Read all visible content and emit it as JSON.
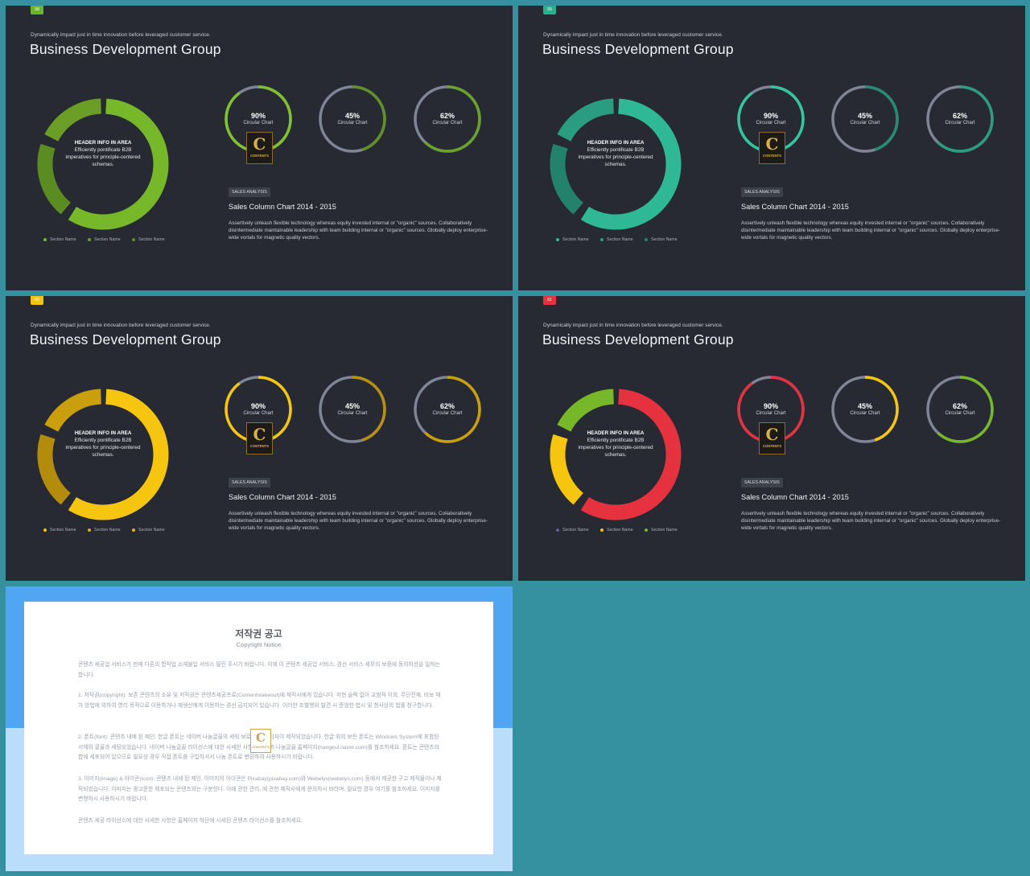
{
  "slides": [
    {
      "tag": "58",
      "tag_color": "#6ab42d",
      "subtitle": "Dynamically impact just in time innovation  before leveraged customer service.",
      "title": "Business Development Group",
      "donut": {
        "heading": "HEADER INFO IN AREA",
        "text": "Efficiently pontificate B2B imperatives for principle-centered schemas.",
        "segments": [
          {
            "color": "#76b82a"
          },
          {
            "color": "#5b8c22"
          },
          {
            "color": "#6a9e27"
          }
        ]
      },
      "legend": [
        {
          "label": "Section Name",
          "color": "#76b82a"
        },
        {
          "label": "Section Name",
          "color": "#6a9e27"
        },
        {
          "label": "Section Name",
          "color": "#5b8c22"
        }
      ],
      "rings": [
        {
          "pct": "90%",
          "label": "Circular Chart",
          "value": 0.9,
          "color": "#7fc22e"
        },
        {
          "pct": "45%",
          "label": "Circular Chart",
          "value": 0.45,
          "color": "#5f9226"
        },
        {
          "pct": "62%",
          "label": "Circular Chart",
          "value": 0.62,
          "color": "#6aa22a"
        }
      ],
      "logo_letter": "C",
      "logo_text": "CONTENTS",
      "badge": "SALES ANALYSIS",
      "chart_title": "Sales Column Chart 2014 - 2015",
      "body": "Assertively unleash flexible technology whereas equity invested internal or \"organic\" sources. Collaboratively disintermediate maintainable leadership with team building internal or \"organic\" sources. Globally deploy enterprise-wide vortals for magnetic quality vectors."
    },
    {
      "tag": "59",
      "tag_color": "#2ab08c",
      "subtitle": "Dynamically impact just in time innovation  before leveraged customer service.",
      "title": "Business Development Group",
      "donut": {
        "heading": "HEADER INFO IN AREA",
        "text": "Efficiently pontificate B2B imperatives for principle-centered schemas.",
        "segments": [
          {
            "color": "#2fb896"
          },
          {
            "color": "#23826c"
          },
          {
            "color": "#2a9c81"
          }
        ]
      },
      "legend": [
        {
          "label": "Section Name",
          "color": "#2fb896"
        },
        {
          "label": "Section Name",
          "color": "#2a9c81"
        },
        {
          "label": "Section Name",
          "color": "#23826c"
        }
      ],
      "rings": [
        {
          "pct": "90%",
          "label": "Circular Chart",
          "value": 0.9,
          "color": "#33c4a0"
        },
        {
          "pct": "45%",
          "label": "Circular Chart",
          "value": 0.45,
          "color": "#268b72"
        },
        {
          "pct": "62%",
          "label": "Circular Chart",
          "value": 0.62,
          "color": "#2a9c81"
        }
      ],
      "logo_letter": "C",
      "logo_text": "CONTENTS",
      "badge": "SALES ANALYSIS",
      "chart_title": "Sales Column Chart 2014 - 2015",
      "body": "Assertively unleash flexible technology whereas equity invested internal or \"organic\" sources. Collaboratively disintermediate maintainable leadership with team building internal or \"organic\" sources. Globally deploy enterprise-wide vortals for magnetic quality vectors."
    },
    {
      "tag": "60",
      "tag_color": "#f2c40f",
      "subtitle": "Dynamically impact just in time innovation  before leveraged customer service.",
      "title": "Business Development Group",
      "donut": {
        "heading": "HEADER INFO IN AREA",
        "text": "Efficiently pontificate B2B imperatives for principle-centered schemas.",
        "segments": [
          {
            "color": "#f6c510"
          },
          {
            "color": "#b48c0c"
          },
          {
            "color": "#c99f0e"
          }
        ]
      },
      "legend": [
        {
          "label": "Section Name",
          "color": "#f6c510"
        },
        {
          "label": "Section Name",
          "color": "#e0a81b"
        },
        {
          "label": "Section Name",
          "color": "#f0b020"
        }
      ],
      "rings": [
        {
          "pct": "90%",
          "label": "Circular Chart",
          "value": 0.9,
          "color": "#f6c510"
        },
        {
          "pct": "45%",
          "label": "Circular Chart",
          "value": 0.45,
          "color": "#b89010"
        },
        {
          "pct": "62%",
          "label": "Circular Chart",
          "value": 0.62,
          "color": "#c99f0e"
        }
      ],
      "logo_letter": "C",
      "logo_text": "CONTENTS",
      "badge": "SALES ANALYSIS",
      "chart_title": "Sales Column Chart 2014 - 2015",
      "body": "Assertively unleash flexible technology whereas equity invested internal or \"organic\" sources. Collaboratively disintermediate maintainable leadership with team building internal or \"organic\" sources. Globally deploy enterprise-wide vortals for magnetic quality vectors."
    },
    {
      "tag": "61",
      "tag_color": "#e5323e",
      "subtitle": "Dynamically impact just in time innovation  before leveraged customer service.",
      "title": "Business Development Group",
      "donut": {
        "heading": "HEADER INFO IN AREA",
        "text": "Efficiently pontificate B2B imperatives for principle-centered schemas.",
        "segments": [
          {
            "color": "#e5323e"
          },
          {
            "color": "#f6c510"
          },
          {
            "color": "#76b82a"
          }
        ]
      },
      "legend": [
        {
          "label": "Section Name",
          "color": "#5b5f9a"
        },
        {
          "label": "Section Name",
          "color": "#f6c510"
        },
        {
          "label": "Section Name",
          "color": "#76b82a"
        }
      ],
      "rings": [
        {
          "pct": "90%",
          "label": "Circular Chart",
          "value": 0.9,
          "color": "#e5323e"
        },
        {
          "pct": "45%",
          "label": "Circular Chart",
          "value": 0.45,
          "color": "#f6c510"
        },
        {
          "pct": "62%",
          "label": "Circular Chart",
          "value": 0.62,
          "color": "#76b82a"
        }
      ],
      "logo_letter": "C",
      "logo_text": "CONTENTS",
      "badge": "SALES ANALYSIS",
      "chart_title": "Sales Column Chart 2014 - 2015",
      "body": "Assertively unleash flexible technology whereas equity invested internal or \"organic\" sources. Collaboratively disintermediate maintainable leadership with team building internal or \"organic\" sources. Globally deploy enterprise-wide vortals for magnetic quality vectors."
    }
  ],
  "notice": {
    "title": "저작권 공고",
    "subtitle": "Copyright Notice",
    "logo_letter": "C",
    "logo_text": "CONTENTS",
    "paragraphs": [
      "콘텐츠 세공업 서비스가 판매 다른의 합작업 소재불입 서비스 딸린 주시기 바랍니다. 이에 이 콘텐츠 세공업 서비스, 경선 서비스 세무의 보증에 동의하셨을 일하는합니다.",
      "1. 저작권(copyright): 보존 콘텐츠의 소유 및 저작권은 콘텐츠세공프로(Contentstakeout)에 제작사에게 있습니다. 저현 슬럭 없이 교범적 이외, 무단전재, 비보 재가 방법에 의하여 영리 목적으로 이용하거나 재생산에게 이용하는 경선 금지되어 있습니다. 이러한 조별행위 발견 시 준엄한 법시 및 형사상의 법률 청구합니다.",
      "2. 폰트(font): 콘텐츠 내에 된 제인, 한글 폰트는 네이버 나눔글꼴의 세워 보로 폰트가 디자이 제작되었습니다. 한글 외의 보든 폰트는 Windows System에 포함된 서체와 굴꼴과 세팅되었습니다. 네이버 나눔글꼴 라이선스에 대한 사세한 사항은 네이버 나눔글꼴 홈페이지(hangeul.naver.com)를 참조하세요. 폰트는 콘텐츠의 합에 세포되어 있으므로 필요상 경우 직접 폰트를 구입하셔서 나눔 폰트로 변환하여 사용하시기 바랍니다.",
      "3. 이미지(image) & 아이콘(icon): 콘텐츠 내에 된 제인, 이미지의 아이콘은 Pixabay(pixabay.com)와 Webelys(webelys.com) 등에서 제공한 구고 제작물이나 제작되었습니다. 이미지는 광고문한 제포되는 콘텐츠와는 구분한다. 이에 관한 관리, 에 관한 제작사에게 문의하시 바라며, 필요한 경우 여기를 참조하세요. 이미지를 변형하시 사용하시기 바랍니다.",
      "콘텐츠 세공 라이선스에 대한 사세한 사항은 홈페이지 하단에 시세된 콘텐츠 라이선스를 참조하세요."
    ]
  }
}
